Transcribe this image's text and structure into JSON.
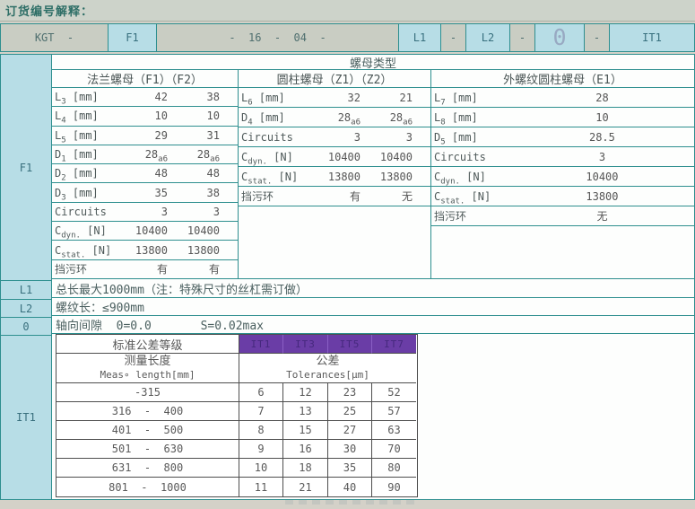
{
  "colors": {
    "teal_border": "#2e8f8f",
    "accent_cyan": "#b7dde6",
    "cell_gray": "#c9cdc3",
    "page_bg": "#d4d1c8",
    "purple": "#6a3da6",
    "purple_text": "#46297e",
    "table_border": "#4e4e4e",
    "text": "#555555",
    "teal_text": "#2f6e74"
  },
  "page": {
    "title": "订货编号解释："
  },
  "code_row": {
    "cells": [
      {
        "text": "KGT  -",
        "style": "gray"
      },
      {
        "text": "F1",
        "style": "cyan"
      },
      {
        "text": "-  16  -  04  -",
        "style": "gray"
      },
      {
        "text": "L1",
        "style": "cyan"
      },
      {
        "text": "-",
        "style": "gray"
      },
      {
        "text": "L2",
        "style": "cyan"
      },
      {
        "text": "-",
        "style": "gray"
      },
      {
        "text": "0",
        "style": "cyan zero"
      },
      {
        "text": "-",
        "style": "gray"
      },
      {
        "text": "IT1",
        "style": "cyan"
      }
    ]
  },
  "side_labels": {
    "f1": "F1",
    "l1": "L1",
    "l2": "L2",
    "zero": "0",
    "it1": "IT1"
  },
  "nut_table": {
    "title": "螺母类型",
    "columns": [
      {
        "header": "法兰螺母（F1）（F2）",
        "rows": [
          {
            "label": "L",
            "label_sub": "3",
            "unit": "[mm]",
            "values": [
              {
                "v": "42"
              },
              {
                "v": "38"
              }
            ]
          },
          {
            "label": "L",
            "label_sub": "4",
            "unit": "[mm]",
            "values": [
              {
                "v": "10"
              },
              {
                "v": "10"
              }
            ]
          },
          {
            "label": "L",
            "label_sub": "5",
            "unit": "[mm]",
            "values": [
              {
                "v": "29"
              },
              {
                "v": "31"
              }
            ]
          },
          {
            "label": "D",
            "label_sub": "1",
            "unit": "[mm]",
            "values": [
              {
                "v": "28",
                "sub": "a6"
              },
              {
                "v": "28",
                "sub": "a6"
              }
            ]
          },
          {
            "label": "D",
            "label_sub": "2",
            "unit": "[mm]",
            "values": [
              {
                "v": "48"
              },
              {
                "v": "48"
              }
            ]
          },
          {
            "label": "D",
            "label_sub": "3",
            "unit": "[mm]",
            "values": [
              {
                "v": "35"
              },
              {
                "v": "38"
              }
            ]
          },
          {
            "label": "Circuits",
            "values": [
              {
                "v": "3"
              },
              {
                "v": "3"
              }
            ]
          },
          {
            "label": "C",
            "label_sub": "dyn.",
            "unit": "[N]",
            "values": [
              {
                "v": "10400"
              },
              {
                "v": "10400"
              }
            ]
          },
          {
            "label": "C",
            "label_sub": "stat.",
            "unit": "[N]",
            "values": [
              {
                "v": "13800"
              },
              {
                "v": "13800"
              }
            ]
          },
          {
            "label": "挡污环",
            "values": [
              {
                "v": "有"
              },
              {
                "v": "有"
              }
            ]
          }
        ]
      },
      {
        "header": "圆柱螺母（Z1）（Z2）",
        "rows": [
          {
            "label": "L",
            "label_sub": "6",
            "unit": "[mm]",
            "values": [
              {
                "v": "32"
              },
              {
                "v": "21"
              }
            ]
          },
          {
            "label": "D",
            "label_sub": "4",
            "unit": "[mm]",
            "values": [
              {
                "v": "28",
                "sub": "a6"
              },
              {
                "v": "28",
                "sub": "a6"
              }
            ]
          },
          {
            "label": "Circuits",
            "values": [
              {
                "v": "3"
              },
              {
                "v": "3"
              }
            ]
          },
          {
            "label": "C",
            "label_sub": "dyn.",
            "unit": "[N]",
            "values": [
              {
                "v": "10400"
              },
              {
                "v": "10400"
              }
            ]
          },
          {
            "label": "C",
            "label_sub": "stat.",
            "unit": "[N]",
            "values": [
              {
                "v": "13800"
              },
              {
                "v": "13800"
              }
            ]
          },
          {
            "label": "挡污环",
            "values": [
              {
                "v": "有"
              },
              {
                "v": "无"
              }
            ]
          }
        ]
      },
      {
        "header": "外螺纹圆柱螺母（E1）",
        "rows": [
          {
            "label": "L",
            "label_sub": "7",
            "unit": "[mm]",
            "values": [
              {
                "v": "28"
              }
            ]
          },
          {
            "label": "L",
            "label_sub": "8",
            "unit": "[mm]",
            "values": [
              {
                "v": "10"
              }
            ]
          },
          {
            "label": "D",
            "label_sub": "5",
            "unit": "[mm]",
            "values": [
              {
                "v": "28.5"
              }
            ]
          },
          {
            "label": "Circuits",
            "values": [
              {
                "v": "3"
              }
            ]
          },
          {
            "label": "C",
            "label_sub": "dyn.",
            "unit": "[N]",
            "values": [
              {
                "v": "10400"
              }
            ]
          },
          {
            "label": "C",
            "label_sub": "stat.",
            "unit": "[N]",
            "values": [
              {
                "v": "13800"
              }
            ]
          },
          {
            "label": "挡污环",
            "values": [
              {
                "v": "无"
              }
            ]
          }
        ]
      }
    ]
  },
  "info_rows": {
    "l1": "总长最大1000mm（注：特殊尺寸的丝杠需订做）",
    "l2": "螺纹长：≤900mm",
    "zero": "轴向间隙  0=0.0       S=0.02max"
  },
  "tolerance_table": {
    "header_label": "标准公差等级",
    "grades": [
      "IT1",
      "IT3",
      "IT5",
      "IT7"
    ],
    "measure_zh": "测量长度",
    "measure_en": "Meas∘ length[mm]",
    "tol_zh": "公差",
    "tol_en": "Tolerances[μm]",
    "rows": [
      {
        "range": "-315",
        "values": [
          "6",
          "12",
          "23",
          "52"
        ]
      },
      {
        "range": "316  -  400",
        "values": [
          "7",
          "13",
          "25",
          "57"
        ]
      },
      {
        "range": "401  -  500",
        "values": [
          "8",
          "15",
          "27",
          "63"
        ]
      },
      {
        "range": "501  -  630",
        "values": [
          "9",
          "16",
          "30",
          "70"
        ]
      },
      {
        "range": "631  -  800",
        "values": [
          "10",
          "18",
          "35",
          "80"
        ]
      },
      {
        "range": "801  -  1000",
        "values": [
          "11",
          "21",
          "40",
          "90"
        ]
      }
    ]
  }
}
